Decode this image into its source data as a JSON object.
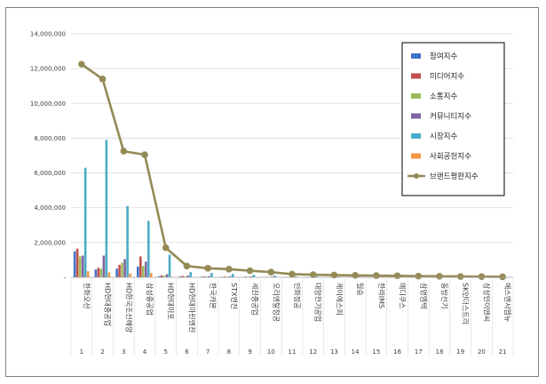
{
  "chart_data": {
    "type": "bar",
    "title": "",
    "xlabel": "",
    "ylabel": "",
    "ylim": [
      0,
      14000000
    ],
    "yticks": [
      0,
      2000000,
      4000000,
      6000000,
      8000000,
      10000000,
      12000000,
      14000000
    ],
    "ytick_labels": [
      "-",
      "2,000,000",
      "4,000,000",
      "6,000,000",
      "8,000,000",
      "10,000,000",
      "12,000,000",
      "14,000,000"
    ],
    "grid": true,
    "legend_position": "top-right",
    "ranks": [
      "1",
      "2",
      "3",
      "4",
      "5",
      "6",
      "7",
      "8",
      "9",
      "10",
      "11",
      "12",
      "13",
      "14",
      "15",
      "16",
      "17",
      "18",
      "19",
      "20",
      "21"
    ],
    "categories": [
      "한화오션",
      "HD현대중공업",
      "HD한국조선해양",
      "삼성중공업",
      "HD현대미포",
      "HD현대마린엔진",
      "한국카본",
      "STX엔진",
      "세진중공업",
      "오리엔탈정공",
      "인화정공",
      "대양전기공업",
      "케이에스피",
      "일승",
      "한라IMS",
      "메디쿠스",
      "삼영엠텍",
      "동방선기",
      "SK인더스트리",
      "상상인이엔씨",
      "에스엔시엠뉴"
    ],
    "series": [
      {
        "name": "참여지수",
        "color": "#4472c4",
        "kind": "bar",
        "values": [
          1500000,
          450000,
          500000,
          620000,
          60000,
          50000,
          35000,
          30000,
          25000,
          20000,
          12000,
          10000,
          9000,
          7000,
          6000,
          5000,
          4000,
          3000,
          2000,
          1500,
          1000
        ]
      },
      {
        "name": "미디어지수",
        "color": "#c0504d",
        "kind": "bar",
        "values": [
          1650000,
          550000,
          720000,
          1200000,
          120000,
          80000,
          60000,
          50000,
          40000,
          30000,
          20000,
          15000,
          12000,
          10000,
          8000,
          7000,
          6000,
          5000,
          4000,
          3000,
          2000
        ]
      },
      {
        "name": "소통지수",
        "color": "#9bbb59",
        "kind": "bar",
        "values": [
          1200000,
          500000,
          850000,
          650000,
          90000,
          60000,
          40000,
          35000,
          30000,
          25000,
          15000,
          12000,
          10000,
          8000,
          7000,
          6000,
          5000,
          4000,
          3000,
          2000,
          1500
        ]
      },
      {
        "name": "커뮤니티지수",
        "color": "#8064a2",
        "kind": "bar",
        "values": [
          1250000,
          1250000,
          1050000,
          900000,
          180000,
          100000,
          70000,
          60000,
          50000,
          40000,
          25000,
          20000,
          15000,
          12000,
          10000,
          8000,
          7000,
          6000,
          5000,
          4000,
          3000
        ]
      },
      {
        "name": "시장지수",
        "color": "#4bacc6",
        "kind": "bar",
        "values": [
          6300000,
          7900000,
          4100000,
          3250000,
          1300000,
          300000,
          250000,
          200000,
          150000,
          100000,
          60000,
          50000,
          40000,
          30000,
          25000,
          20000,
          15000,
          12000,
          10000,
          8000,
          6000
        ]
      },
      {
        "name": "사회공헌지수",
        "color": "#f79646",
        "kind": "bar",
        "values": [
          350000,
          280000,
          220000,
          250000,
          30000,
          20000,
          15000,
          12000,
          10000,
          8000,
          5000,
          4000,
          3000,
          2500,
          2000,
          1500,
          1200,
          1000,
          800,
          600,
          500
        ]
      },
      {
        "name": "브랜드평판지수",
        "color": "#948a54",
        "kind": "line",
        "values": [
          12250000,
          11400000,
          7250000,
          7050000,
          1700000,
          650000,
          520000,
          470000,
          380000,
          300000,
          180000,
          150000,
          130000,
          110000,
          100000,
          90000,
          70000,
          60000,
          50000,
          40000,
          30000
        ]
      }
    ]
  }
}
